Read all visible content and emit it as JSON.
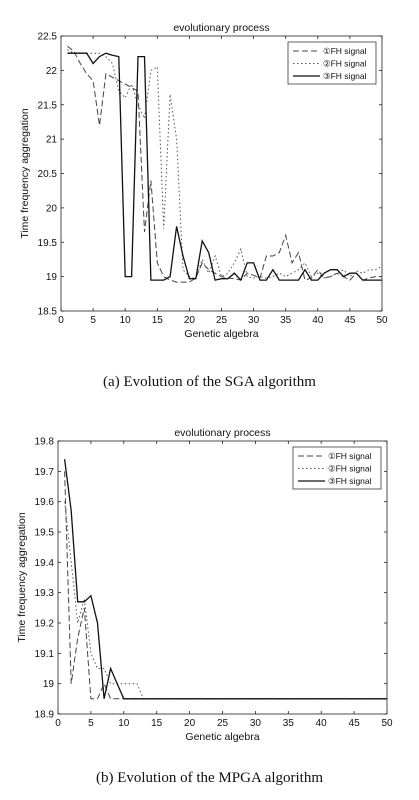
{
  "figure_captions": [
    "(a) Evolution of the SGA algorithm",
    "(b) Evolution of the MPGA algorithm"
  ],
  "chart_data": [
    {
      "type": "line",
      "title": "evolutionary process",
      "xlabel": "Genetic algebra",
      "ylabel": "Time frequency aggregation",
      "xlim": [
        0,
        50
      ],
      "ylim": [
        18.5,
        22.5
      ],
      "xticks": [
        0,
        5,
        10,
        15,
        20,
        25,
        30,
        35,
        40,
        45,
        50
      ],
      "yticks": [
        18.5,
        19,
        19.5,
        20,
        20.5,
        21,
        21.5,
        22,
        22.5
      ],
      "ytick_labels": [
        "18.5",
        "19",
        "19.5",
        "20",
        "20.5",
        "21",
        "21.5",
        "22",
        "22.5"
      ],
      "grid": false,
      "legend_position": "top-right",
      "series": [
        {
          "name": "①FH signal",
          "style": "dashed",
          "color": "#444444",
          "x": [
            1,
            2,
            3,
            4,
            5,
            6,
            7,
            8,
            9,
            10,
            11,
            12,
            13,
            14,
            15,
            16,
            17,
            18,
            19,
            20,
            21,
            22,
            23,
            24,
            25,
            26,
            27,
            28,
            29,
            30,
            31,
            32,
            33,
            34,
            35,
            36,
            37,
            38,
            39,
            40,
            41,
            42,
            43,
            44,
            45,
            46,
            47,
            48,
            49,
            50
          ],
          "y": [
            22.35,
            22.28,
            22.1,
            21.95,
            21.85,
            21.2,
            21.95,
            21.9,
            21.85,
            21.8,
            21.75,
            21.7,
            19.65,
            20.4,
            19.2,
            19.0,
            18.95,
            18.92,
            18.92,
            18.92,
            18.98,
            19.2,
            19.1,
            19.05,
            19.0,
            18.98,
            18.97,
            18.95,
            19.05,
            19.02,
            18.98,
            19.3,
            19.3,
            19.35,
            19.6,
            19.2,
            19.35,
            18.95,
            18.98,
            19.1,
            18.98,
            19.0,
            19.05,
            19.0,
            18.95,
            19.05,
            18.95,
            18.98,
            19.0,
            19.0
          ]
        },
        {
          "name": "②FH signal",
          "style": "dotted",
          "color": "#555555",
          "x": [
            1,
            2,
            3,
            4,
            5,
            6,
            7,
            8,
            9,
            10,
            11,
            12,
            13,
            14,
            15,
            16,
            17,
            18,
            19,
            20,
            21,
            22,
            23,
            24,
            25,
            26,
            27,
            28,
            29,
            30,
            31,
            32,
            33,
            34,
            35,
            36,
            37,
            38,
            39,
            40,
            41,
            42,
            43,
            44,
            45,
            46,
            47,
            48,
            49,
            50
          ],
          "y": [
            22.3,
            22.25,
            22.25,
            22.25,
            22.25,
            22.25,
            22.2,
            22.1,
            21.7,
            21.6,
            21.8,
            21.5,
            21.3,
            22.0,
            22.05,
            19.7,
            21.65,
            21.0,
            19.1,
            19.0,
            18.97,
            19.25,
            19.05,
            19.3,
            19.0,
            19.05,
            19.2,
            19.4,
            19.0,
            18.98,
            19.0,
            18.98,
            19.0,
            19.05,
            19.0,
            19.05,
            19.1,
            19.2,
            19.0,
            19.05,
            18.98,
            19.0,
            19.05,
            19.1,
            19.0,
            19.08,
            19.05,
            19.1,
            19.1,
            19.15
          ]
        },
        {
          "name": "③FH signal",
          "style": "solid",
          "color": "#111111",
          "x": [
            1,
            2,
            3,
            4,
            5,
            6,
            7,
            8,
            9,
            10,
            11,
            12,
            13,
            14,
            15,
            16,
            17,
            18,
            19,
            20,
            21,
            22,
            23,
            24,
            25,
            26,
            27,
            28,
            29,
            30,
            31,
            32,
            33,
            34,
            35,
            36,
            37,
            38,
            39,
            40,
            41,
            42,
            43,
            44,
            45,
            46,
            47,
            48,
            49,
            50
          ],
          "y": [
            22.25,
            22.25,
            22.25,
            22.25,
            22.1,
            22.2,
            22.25,
            22.22,
            22.2,
            19.0,
            19.0,
            22.2,
            22.2,
            18.95,
            18.95,
            18.95,
            19.0,
            19.73,
            19.3,
            18.97,
            18.97,
            19.52,
            19.35,
            18.95,
            18.97,
            18.97,
            19.05,
            18.95,
            19.2,
            19.2,
            18.95,
            18.95,
            19.1,
            18.95,
            18.95,
            18.95,
            18.95,
            19.1,
            18.95,
            18.95,
            19.05,
            19.1,
            19.1,
            19.0,
            19.05,
            19.05,
            18.95,
            18.95,
            18.95,
            18.95
          ]
        }
      ]
    },
    {
      "type": "line",
      "title": "evolutionary process",
      "xlabel": "Genetic algebra",
      "ylabel": "Time frequency aggregation",
      "xlim": [
        0,
        50
      ],
      "ylim": [
        18.9,
        19.8
      ],
      "xticks": [
        0,
        5,
        10,
        15,
        20,
        25,
        30,
        35,
        40,
        45,
        50
      ],
      "yticks": [
        18.9,
        19,
        19.1,
        19.2,
        19.3,
        19.4,
        19.5,
        19.6,
        19.7,
        19.8
      ],
      "ytick_labels": [
        "18.9",
        "19",
        "19.1",
        "19.2",
        "19.3",
        "19.4",
        "19.5",
        "19.6",
        "19.7",
        "19.8"
      ],
      "grid": false,
      "legend_position": "top-right",
      "series": [
        {
          "name": "①FH signal",
          "style": "dashed",
          "color": "#444444",
          "x": [
            1,
            2,
            3,
            4,
            5,
            6,
            7,
            8,
            9,
            10,
            11,
            12,
            13,
            14,
            15,
            16,
            17,
            18,
            19,
            20,
            21,
            22,
            23,
            24,
            25,
            26,
            27,
            28,
            29,
            30,
            31,
            32,
            33,
            34,
            35,
            36,
            37,
            38,
            39,
            40,
            41,
            42,
            43,
            44,
            45,
            46,
            47,
            48,
            49,
            50
          ],
          "y": [
            19.7,
            19.0,
            19.15,
            19.25,
            18.95,
            18.95,
            19.0,
            18.95,
            18.95,
            18.95,
            18.95,
            18.95,
            18.95,
            18.95,
            18.95,
            18.95,
            18.95,
            18.95,
            18.95,
            18.95,
            18.95,
            18.95,
            18.95,
            18.95,
            18.95,
            18.95,
            18.95,
            18.95,
            18.95,
            18.95,
            18.95,
            18.95,
            18.95,
            18.95,
            18.95,
            18.95,
            18.95,
            18.95,
            18.95,
            18.95,
            18.95,
            18.95,
            18.95,
            18.95,
            18.95,
            18.95,
            18.95,
            18.95,
            18.95,
            18.95
          ]
        },
        {
          "name": "②FH signal",
          "style": "dotted",
          "color": "#555555",
          "x": [
            1,
            2,
            3,
            4,
            5,
            6,
            7,
            8,
            9,
            10,
            11,
            12,
            13,
            14,
            15,
            16,
            17,
            18,
            19,
            20,
            21,
            22,
            23,
            24,
            25,
            26,
            27,
            28,
            29,
            30,
            31,
            32,
            33,
            34,
            35,
            36,
            37,
            38,
            39,
            40,
            41,
            42,
            43,
            44,
            45,
            46,
            47,
            48,
            49,
            50
          ],
          "y": [
            19.6,
            19.4,
            19.2,
            19.28,
            19.1,
            19.05,
            19.05,
            19.0,
            19.0,
            19.0,
            19.0,
            19.0,
            18.95,
            18.95,
            18.95,
            18.95,
            18.95,
            18.95,
            18.95,
            18.95,
            18.95,
            18.95,
            18.95,
            18.95,
            18.95,
            18.95,
            18.95,
            18.95,
            18.95,
            18.95,
            18.95,
            18.95,
            18.95,
            18.95,
            18.95,
            18.95,
            18.95,
            18.95,
            18.95,
            18.95,
            18.95,
            18.95,
            18.95,
            18.95,
            18.95,
            18.95,
            18.95,
            18.95,
            18.95,
            18.95
          ]
        },
        {
          "name": "③FH signal",
          "style": "solid",
          "color": "#111111",
          "x": [
            1,
            2,
            3,
            4,
            5,
            6,
            7,
            8,
            9,
            10,
            11,
            12,
            13,
            14,
            15,
            16,
            17,
            18,
            19,
            20,
            21,
            22,
            23,
            24,
            25,
            26,
            27,
            28,
            29,
            30,
            31,
            32,
            33,
            34,
            35,
            36,
            37,
            38,
            39,
            40,
            41,
            42,
            43,
            44,
            45,
            46,
            47,
            48,
            49,
            50
          ],
          "y": [
            19.74,
            19.57,
            19.27,
            19.27,
            19.29,
            19.2,
            18.95,
            19.05,
            19.0,
            18.95,
            18.95,
            18.95,
            18.95,
            18.95,
            18.95,
            18.95,
            18.95,
            18.95,
            18.95,
            18.95,
            18.95,
            18.95,
            18.95,
            18.95,
            18.95,
            18.95,
            18.95,
            18.95,
            18.95,
            18.95,
            18.95,
            18.95,
            18.95,
            18.95,
            18.95,
            18.95,
            18.95,
            18.95,
            18.95,
            18.95,
            18.95,
            18.95,
            18.95,
            18.95,
            18.95,
            18.95,
            18.95,
            18.95,
            18.95,
            18.95
          ]
        }
      ]
    }
  ]
}
